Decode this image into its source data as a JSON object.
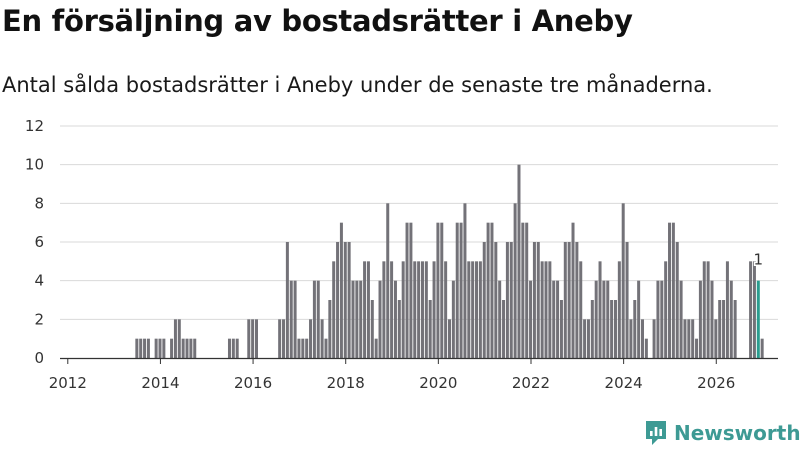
{
  "header": {
    "title": "En försäljning av bostadsrätter i Aneby",
    "subtitle": "Antal sålda bostadsrätter i Aneby under de senaste tre månaderna."
  },
  "branding": {
    "logo_icon": "newsworthy-logo-icon",
    "name": "Newsworthy"
  },
  "colors": {
    "bar": "#737278",
    "highlight": "#2a9d8f",
    "grid": "#d9d9d9",
    "axis": "#333333",
    "brand": "#3d9a94"
  },
  "chart_data": {
    "type": "bar",
    "title": "En försäljning av bostadsrätter i Aneby",
    "subtitle": "Antal sålda bostadsrätter i Aneby under de senaste tre månaderna.",
    "xlabel": "",
    "ylabel": "",
    "ylim": [
      0,
      12
    ],
    "yticks": [
      0,
      2,
      4,
      6,
      8,
      10,
      12
    ],
    "xticks": [
      "2012",
      "2014",
      "2016",
      "2018",
      "2020",
      "2022",
      "2024",
      "2026"
    ],
    "x_start": "2011-12",
    "period": "month",
    "grid": true,
    "values": [
      0,
      0,
      0,
      0,
      0,
      0,
      0,
      0,
      0,
      0,
      0,
      0,
      0,
      0,
      0,
      0,
      0,
      0,
      0,
      1,
      1,
      1,
      1,
      0,
      1,
      1,
      1,
      0,
      1,
      2,
      2,
      1,
      1,
      1,
      1,
      0,
      0,
      0,
      0,
      0,
      0,
      0,
      0,
      1,
      1,
      1,
      0,
      0,
      2,
      2,
      2,
      0,
      0,
      0,
      0,
      0,
      2,
      2,
      6,
      4,
      4,
      1,
      1,
      1,
      2,
      4,
      4,
      2,
      1,
      3,
      5,
      6,
      7,
      6,
      6,
      4,
      4,
      4,
      5,
      5,
      3,
      1,
      4,
      5,
      8,
      5,
      4,
      3,
      5,
      7,
      7,
      5,
      5,
      5,
      5,
      3,
      5,
      7,
      7,
      5,
      2,
      4,
      7,
      7,
      8,
      5,
      5,
      5,
      5,
      6,
      7,
      7,
      6,
      4,
      3,
      6,
      6,
      8,
      10,
      7,
      7,
      4,
      6,
      6,
      5,
      5,
      5,
      4,
      4,
      3,
      6,
      6,
      7,
      6,
      5,
      2,
      2,
      3,
      4,
      5,
      4,
      4,
      3,
      3,
      5,
      8,
      6,
      2,
      3,
      4,
      2,
      1,
      0,
      2,
      4,
      4,
      5,
      7,
      7,
      6,
      4,
      2,
      2,
      2,
      1,
      4,
      5,
      5,
      4,
      2,
      3,
      3,
      5,
      4,
      3,
      0,
      0,
      0,
      5,
      5,
      4,
      1
    ],
    "highlight_index": 180,
    "annotations": [
      {
        "index": 180,
        "text": "1"
      }
    ]
  }
}
